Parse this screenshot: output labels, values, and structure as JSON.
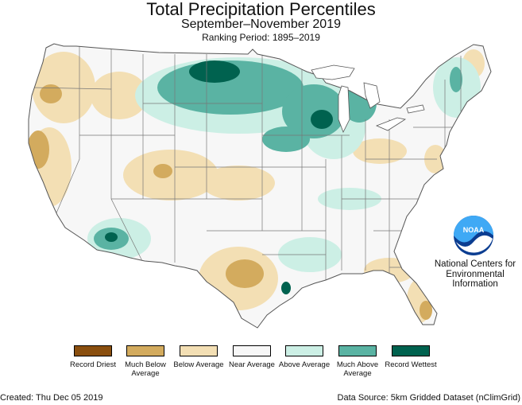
{
  "header": {
    "title": "Total Precipitation Percentiles",
    "subtitle": "September–November 2019",
    "ranking_period": "Ranking Period: 1895–2019"
  },
  "legend": {
    "items": [
      {
        "label": "Record Driest",
        "color": "#8a4f0f"
      },
      {
        "label": "Much Below Average",
        "color": "#d3ab5e"
      },
      {
        "label": "Below Average",
        "color": "#f3dfb4"
      },
      {
        "label": "Near Average",
        "color": "#f7f7f7"
      },
      {
        "label": "Above Average",
        "color": "#ccefe5"
      },
      {
        "label": "Much Above Average",
        "color": "#5ab3a3"
      },
      {
        "label": "Record Wettest",
        "color": "#00624f"
      }
    ]
  },
  "org": {
    "logo_text": "NOAA",
    "name": "National Centers for Environmental Information"
  },
  "footer": {
    "created": "Created: Thu Dec 05 2019",
    "source": "Data Source: 5km Gridded Dataset (nClimGrid)"
  },
  "map_colors": {
    "state_border": "#777777",
    "record_dry": "#8a4f0f",
    "much_below": "#d3ab5e",
    "below": "#f3dfb4",
    "near": "#f7f7f7",
    "above": "#ccefe5",
    "much_above": "#5ab3a3",
    "record_wet": "#00624f"
  }
}
